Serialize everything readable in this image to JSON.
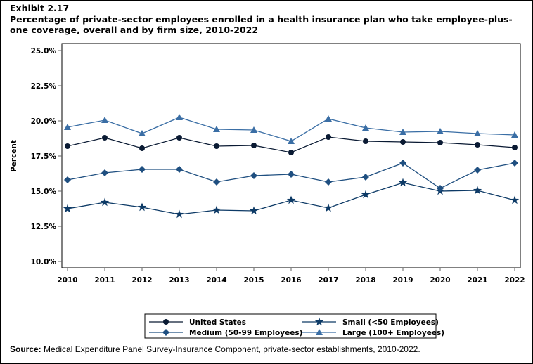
{
  "exhibit": "Exhibit 2.17",
  "title": "Percentage of private-sector employees enrolled in a health insurance plan who take employee-plus-one coverage, overall and by firm size, 2010-2022",
  "source_label": "Source:",
  "source_text": "Medical Expenditure Panel Survey-Insurance Component, private-sector establishments, 2010-2022.",
  "chart_data": {
    "type": "line",
    "title": "Percentage of private-sector employees enrolled in a health insurance plan who take employee-plus-one coverage, overall and by firm size, 2010-2022",
    "xlabel": "",
    "ylabel": "Percent",
    "ylim": [
      10,
      25
    ],
    "yticks": [
      "10.0%",
      "12.5%",
      "15.0%",
      "17.5%",
      "20.0%",
      "22.5%",
      "25.0%"
    ],
    "grid": false,
    "legend_position": "bottom",
    "x": [
      "2010",
      "2011",
      "2012",
      "2013",
      "2014",
      "2015",
      "2016",
      "2017",
      "2018",
      "2019",
      "2020",
      "2021",
      "2022"
    ],
    "series": [
      {
        "name": "United States",
        "marker": "circle",
        "color": "#0a1a33",
        "values": [
          18.2,
          18.8,
          18.05,
          18.8,
          18.2,
          18.25,
          17.75,
          18.85,
          18.55,
          18.5,
          18.45,
          18.3,
          18.1
        ]
      },
      {
        "name": "Small (<50 Employees)",
        "marker": "star",
        "color": "#0d3a66",
        "values": [
          13.75,
          14.2,
          13.85,
          13.35,
          13.65,
          13.6,
          14.35,
          13.8,
          14.75,
          15.6,
          15.0,
          15.05,
          14.35
        ]
      },
      {
        "name": "Medium (50-99 Employees)",
        "marker": "diamond",
        "color": "#1f4f80",
        "values": [
          15.8,
          16.3,
          16.55,
          16.55,
          15.65,
          16.1,
          16.2,
          15.65,
          16.0,
          17.0,
          15.2,
          16.5,
          17.0
        ]
      },
      {
        "name": "Large (100+ Employees)",
        "marker": "triangle",
        "color": "#3a6ea5",
        "values": [
          19.55,
          20.05,
          19.1,
          20.25,
          19.4,
          19.35,
          18.55,
          20.15,
          19.5,
          19.2,
          19.25,
          19.1,
          19.0
        ]
      }
    ]
  }
}
